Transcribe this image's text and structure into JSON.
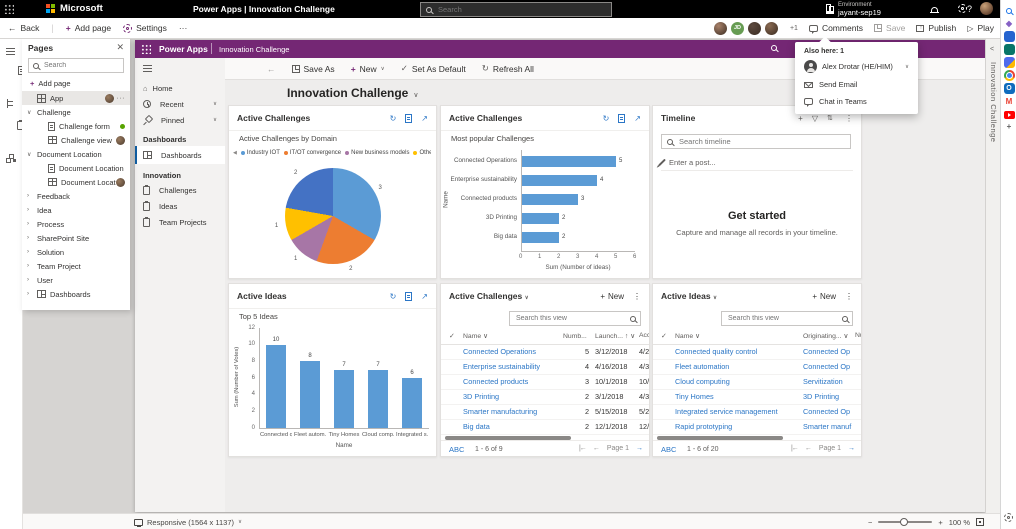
{
  "top_nav": {
    "brand": "Microsoft",
    "title": "Power Apps  |  Innovation Challenge",
    "search_placeholder": "Search",
    "environment_label": "Environment",
    "environment_name": "jayant-sep19",
    "help_label": "?",
    "logo_colors": [
      "#f25022",
      "#7fba00",
      "#00a4ef",
      "#ffb900"
    ]
  },
  "command_bar": {
    "back": "Back",
    "add_page": "Add page",
    "settings": "Settings",
    "overflow": "···",
    "presence_overflow": "+1",
    "comments": "Comments",
    "save": "Save",
    "publish": "Publish",
    "play": "Play",
    "avatars": [
      {
        "initials": "",
        "color": "#a9826a"
      },
      {
        "initials": "JD",
        "color": "#679c53"
      },
      {
        "initials": "",
        "color": "#5d4a3f"
      },
      {
        "initials": "",
        "color": "#8a6a52"
      }
    ]
  },
  "presence_popup": {
    "title": "Also here: 1",
    "user_name": "Alex Drotar (HE/HIM)",
    "send_email": "Send Email",
    "chat_in_teams": "Chat in Teams"
  },
  "pages_panel": {
    "title": "Pages",
    "search_placeholder": "Search",
    "add_page": "Add page",
    "tree": [
      {
        "label": "App",
        "kind": "app",
        "selected": true,
        "badges": [
          "avatar"
        ],
        "more": "···"
      },
      {
        "label": "Challenge",
        "kind": "section",
        "expanded": true
      },
      {
        "label": "Challenge form",
        "kind": "form",
        "badges": [
          "green"
        ]
      },
      {
        "label": "Challenge view",
        "kind": "view",
        "badges": [
          "avatar"
        ]
      },
      {
        "label": "Document Location",
        "kind": "section",
        "expanded": true
      },
      {
        "label": "Document Location form",
        "kind": "form"
      },
      {
        "label": "Document Location view",
        "kind": "view",
        "badges": [
          "avatar"
        ]
      },
      {
        "label": "Feedback",
        "kind": "section",
        "expanded": false
      },
      {
        "label": "Idea",
        "kind": "section",
        "expanded": false
      },
      {
        "label": "Process",
        "kind": "section",
        "expanded": false
      },
      {
        "label": "SharePoint Site",
        "kind": "section",
        "expanded": false
      },
      {
        "label": "Solution",
        "kind": "section",
        "expanded": false
      },
      {
        "label": "Team Project",
        "kind": "section",
        "expanded": false
      },
      {
        "label": "User",
        "kind": "section",
        "expanded": false
      },
      {
        "label": "Dashboards",
        "kind": "dashboards",
        "expanded": false
      }
    ]
  },
  "app": {
    "header": {
      "product": "Power Apps",
      "app_name": "Innovation Challenge"
    },
    "nav": {
      "top": [
        {
          "label": "Home",
          "icon": "home"
        },
        {
          "label": "Recent",
          "icon": "clock",
          "chevron": true
        },
        {
          "label": "Pinned",
          "icon": "pin",
          "chevron": true
        }
      ],
      "groups": [
        {
          "heading": "Dashboards",
          "items": [
            {
              "label": "Dashboards",
              "icon": "dash",
              "selected": true
            }
          ]
        },
        {
          "heading": "Innovation",
          "items": [
            {
              "label": "Challenges",
              "icon": "clip"
            },
            {
              "label": "Ideas",
              "icon": "clip"
            },
            {
              "label": "Team Projects",
              "icon": "clip"
            }
          ]
        }
      ]
    },
    "toolbar": {
      "save_as": "Save As",
      "new": "New",
      "set_as_default": "Set As Default",
      "refresh_all": "Refresh All"
    },
    "page_title": "Innovation Challenge"
  },
  "cards": {
    "pie": {
      "title": "Active Challenges",
      "subtitle": "Active Challenges by Domain"
    },
    "hbar": {
      "title": "Active Challenges",
      "subtitle": "Most popular Challenges"
    },
    "timeline": {
      "title": "Timeline",
      "search_placeholder": "Search timeline",
      "post_placeholder": "Enter a post...",
      "empty_title": "Get started",
      "empty_text": "Capture and manage all records in your timeline."
    },
    "vbar": {
      "title": "Active Ideas",
      "subtitle": "Top 5 Ideas"
    },
    "challenges_table": {
      "title": "Active Challenges",
      "new_label": "New",
      "search_placeholder": "Search this view",
      "columns": [
        {
          "label": "Name",
          "chevron": true
        },
        {
          "label": "Numb...",
          "sort": "↓",
          "chevron": true
        },
        {
          "label": "Launch...",
          "sort": "↑",
          "chevron": true
        },
        {
          "label": "Acce"
        }
      ],
      "jump_label": "ABC",
      "count": "1 - 6 of 9",
      "page": "Page 1"
    },
    "ideas_table": {
      "title": "Active Ideas",
      "new_label": "New",
      "search_placeholder": "Search this view",
      "columns": [
        {
          "label": "Name",
          "chevron": true
        },
        {
          "label": "Originating...",
          "chevron": true
        },
        {
          "label": "Num"
        }
      ],
      "jump_label": "ABC",
      "count": "1 - 6 of 20",
      "page": "Page 1"
    }
  },
  "right_rail": {
    "label": "Innovation Challenge"
  },
  "status_bar": {
    "device": "Responsive (1564 x 1137)",
    "zoom": "100 %",
    "minus": "−",
    "plus": "+"
  },
  "edge_sidebar": [
    {
      "name": "search",
      "style": "mag",
      "color": "#1a73e8"
    },
    {
      "name": "copilot",
      "style": "glyph",
      "glyph": "◆",
      "color": "#8661c5"
    },
    {
      "name": "app-blue",
      "style": "fill",
      "color": "#2564cf"
    },
    {
      "name": "app-teal",
      "style": "fill",
      "color": "#077568"
    },
    {
      "name": "app-indigo",
      "style": "fill2",
      "color": "#4f6bed",
      "color2": "#ffb900"
    },
    {
      "name": "chrome",
      "style": "chrome",
      "color": "#ea4335"
    },
    {
      "name": "outlook",
      "style": "fillglyph",
      "glyph": "O",
      "color": "#0f6cbd"
    },
    {
      "name": "gmail",
      "style": "glyph",
      "glyph": "M",
      "color": "#ea4335"
    },
    {
      "name": "youtube",
      "style": "yt",
      "color": "#ff0000"
    },
    {
      "name": "add",
      "style": "glyph",
      "glyph": "+",
      "color": "#616161"
    }
  ],
  "chart_data": [
    {
      "type": "pie",
      "title": "Active Challenges by Domain",
      "legend": [
        "Industry IOT",
        "IT/OT convergence",
        "New business models",
        "Other"
      ],
      "legend_position": "top",
      "slices": [
        {
          "label": "3",
          "value": 3,
          "color": "#5b9bd5"
        },
        {
          "label": "2",
          "value": 2,
          "color": "#ed7d31"
        },
        {
          "label": "1",
          "value": 1,
          "color": "#a776a6"
        },
        {
          "label": "1",
          "value": 1,
          "color": "#ffc000"
        },
        {
          "label": "2",
          "value": 2,
          "color": "#4472c4"
        }
      ]
    },
    {
      "type": "bar",
      "orientation": "horizontal",
      "title": "Most popular Challenges",
      "categories": [
        "Connected Operations",
        "Enterprise sustainability",
        "Connected products",
        "3D Printing",
        "Big data"
      ],
      "values": [
        5,
        4,
        3,
        2,
        2
      ],
      "xlabel": "Sum (Number of ideas)",
      "ylabel": "Name",
      "xlim": [
        0,
        6
      ],
      "xticks": [
        0,
        1,
        2,
        3,
        4,
        5,
        6
      ],
      "bar_color": "#5b9bd5",
      "grid": false
    },
    {
      "type": "bar",
      "orientation": "vertical",
      "title": "Top 5 Ideas",
      "categories": [
        "Connected q...",
        "Fleet autom...",
        "Tiny Homes",
        "Cloud comp...",
        "Integrated s..."
      ],
      "values": [
        10,
        8,
        7,
        7,
        6
      ],
      "xlabel": "Name",
      "ylabel": "Sum (Number of Votes)",
      "ylim": [
        0,
        12
      ],
      "yticks": [
        0,
        2,
        4,
        6,
        8,
        10,
        12
      ],
      "bar_color": "#5b9bd5",
      "grid": false
    },
    {
      "type": "table",
      "title": "Active Challenges",
      "columns": [
        "Name",
        "Numb...",
        "Launch...",
        "Acce"
      ],
      "rows": [
        [
          "Connected Operations",
          "5",
          "3/12/2018",
          "4/29"
        ],
        [
          "Enterprise sustainability",
          "4",
          "4/16/2018",
          "4/30"
        ],
        [
          "Connected products",
          "3",
          "10/1/2018",
          "10/3"
        ],
        [
          "3D Printing",
          "2",
          "3/1/2018",
          "4/30"
        ],
        [
          "Smarter manufacturing",
          "2",
          "5/15/2018",
          "5/29"
        ],
        [
          "Big data",
          "2",
          "12/1/2018",
          "12/3"
        ]
      ]
    },
    {
      "type": "table",
      "title": "Active Ideas",
      "columns": [
        "Name",
        "Originating...",
        "Num"
      ],
      "rows": [
        [
          "Connected quality control",
          "Connected Op",
          ""
        ],
        [
          "Fleet automation",
          "Connected Op",
          ""
        ],
        [
          "Cloud computing",
          "Servitization",
          ""
        ],
        [
          "Tiny Homes",
          "3D Printing",
          ""
        ],
        [
          "Integrated service management",
          "Connected Op",
          ""
        ],
        [
          "Rapid prototyping",
          "Smarter manuf",
          ""
        ]
      ]
    }
  ]
}
